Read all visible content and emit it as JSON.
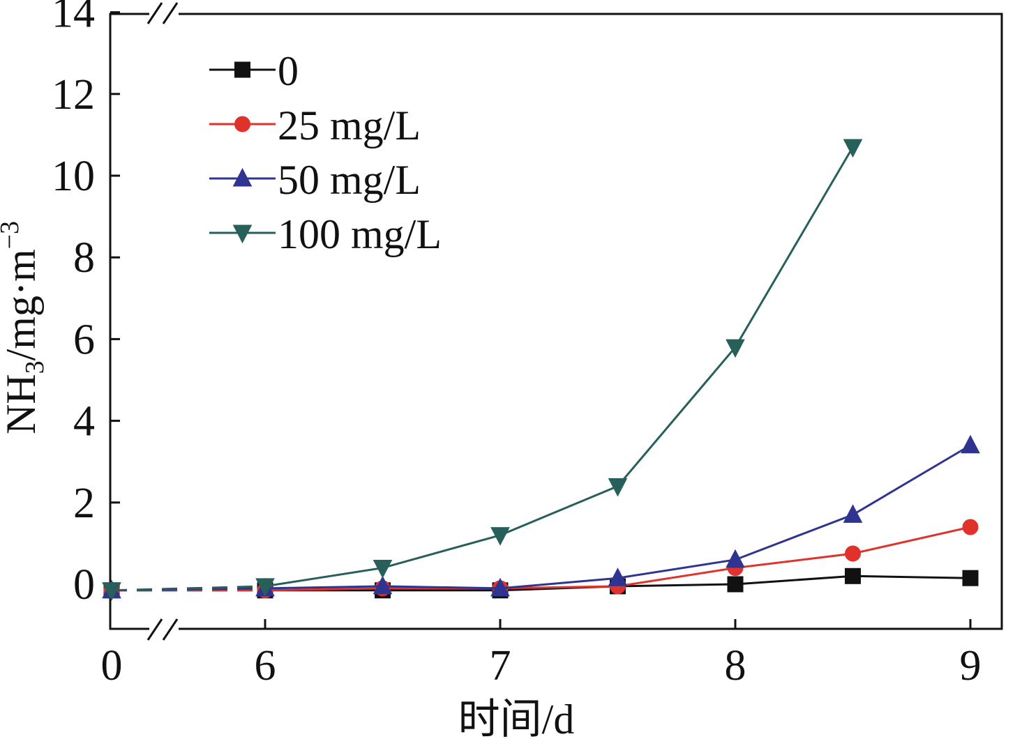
{
  "chart_data": {
    "type": "line",
    "title": "",
    "xlabel": "时间/d",
    "ylabel_main": "NH",
    "ylabel_sub": "3",
    "ylabel_unit": "/mg·m",
    "ylabel_sup": "−3",
    "x_break": true,
    "x_ticks": [
      "0",
      "6",
      "7",
      "8",
      "9"
    ],
    "y_ticks": [
      "0",
      "2",
      "4",
      "6",
      "8",
      "10",
      "12",
      "14"
    ],
    "ylim": [
      -1.2,
      14
    ],
    "x": [
      0,
      6,
      6.5,
      7,
      7.5,
      8,
      8.5,
      9
    ],
    "legend_position": "top-left",
    "grid": false,
    "series": [
      {
        "name": "0",
        "color": "#111111",
        "marker": "square",
        "x": [
          0,
          6,
          6.5,
          7,
          7.5,
          8,
          8.5,
          9
        ],
        "values": [
          -0.15,
          -0.15,
          -0.15,
          -0.15,
          -0.05,
          0.0,
          0.2,
          0.15
        ]
      },
      {
        "name": "25 mg/L",
        "color": "#e0322b",
        "marker": "circle",
        "x": [
          0,
          6,
          6.5,
          7,
          7.5,
          8,
          8.5,
          9
        ],
        "values": [
          -0.15,
          -0.15,
          -0.1,
          -0.1,
          -0.05,
          0.4,
          0.75,
          1.4
        ]
      },
      {
        "name": "50 mg/L",
        "color": "#2f3491",
        "marker": "triangle-up",
        "x": [
          0,
          6,
          6.5,
          7,
          7.5,
          8,
          8.5,
          9
        ],
        "values": [
          -0.15,
          -0.1,
          -0.05,
          -0.1,
          0.15,
          0.6,
          1.7,
          3.4
        ]
      },
      {
        "name": "100 mg/L",
        "color": "#275f5a",
        "marker": "triangle-down",
        "x": [
          0,
          6,
          6.5,
          7,
          7.5,
          8,
          8.5
        ],
        "values": [
          -0.15,
          -0.05,
          0.4,
          1.2,
          2.4,
          5.8,
          10.7
        ]
      }
    ]
  }
}
